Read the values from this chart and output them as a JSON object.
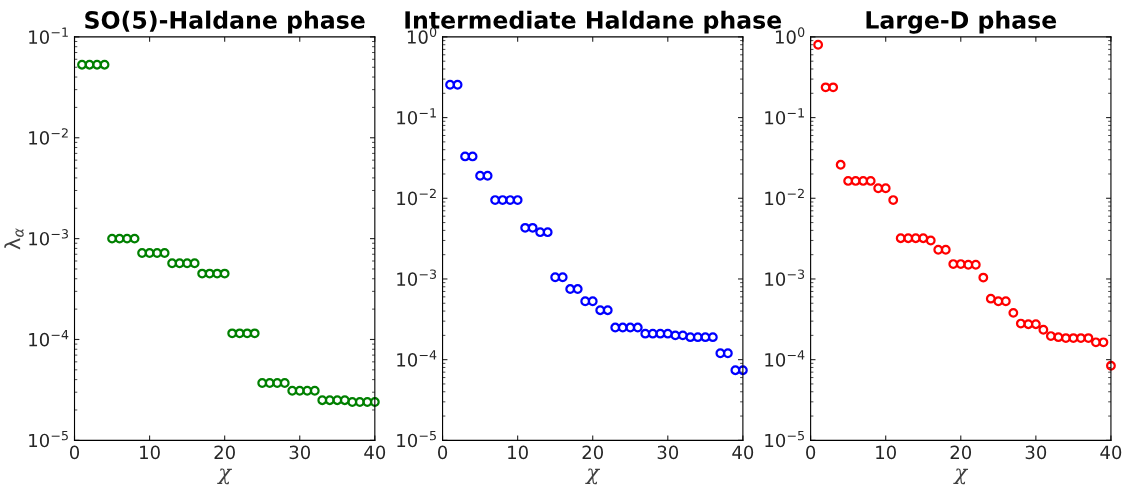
{
  "chart_data": [
    {
      "type": "scatter",
      "title": "SO(5)-Haldane phase",
      "xlabel": "χ",
      "ylabel": "λ$_{α}$",
      "log": "y",
      "marker": "circle",
      "grid": false,
      "x": [
        1,
        2,
        3,
        4,
        5,
        6,
        7,
        8,
        9,
        10,
        11,
        12,
        13,
        14,
        15,
        16,
        17,
        18,
        19,
        20,
        21,
        22,
        23,
        24,
        25,
        26,
        27,
        28,
        29,
        30,
        31,
        32,
        33,
        34,
        35,
        36,
        37,
        38,
        39,
        40
      ],
      "series": [
        {
          "color": "#008000",
          "values": [
            0.053,
            0.053,
            0.053,
            0.053,
            0.001,
            0.001,
            0.001,
            0.001,
            0.00072,
            0.00072,
            0.00072,
            0.00072,
            0.00057,
            0.00057,
            0.00057,
            0.00057,
            0.00045,
            0.00045,
            0.00045,
            0.00045,
            0.000115,
            0.000115,
            0.000115,
            0.000115,
            3.7e-05,
            3.7e-05,
            3.7e-05,
            3.7e-05,
            3.1e-05,
            3.1e-05,
            3.1e-05,
            3.1e-05,
            2.5e-05,
            2.5e-05,
            2.5e-05,
            2.5e-05,
            2.4e-05,
            2.4e-05,
            2.4e-05,
            2.4e-05
          ]
        }
      ],
      "xlim": [
        0,
        40
      ],
      "xticks": [
        0,
        10,
        20,
        30,
        40
      ],
      "ylim": [
        1e-05,
        0.1
      ],
      "yticks": [
        {
          "value": 1e-05,
          "label": "10$^{−5}$"
        },
        {
          "value": 0.0001,
          "label": "10$^{−4}$"
        },
        {
          "value": 0.001,
          "label": "10$^{−3}$"
        },
        {
          "value": 0.01,
          "label": "10$^{−2}$"
        },
        {
          "value": 0.1,
          "label": "10$^{−1}$"
        }
      ]
    },
    {
      "type": "scatter",
      "title": "Intermediate Haldane phase",
      "xlabel": "χ",
      "log": "y",
      "marker": "circle",
      "grid": false,
      "x": [
        1,
        2,
        3,
        4,
        5,
        6,
        7,
        8,
        9,
        10,
        11,
        12,
        13,
        14,
        15,
        16,
        17,
        18,
        19,
        20,
        21,
        22,
        23,
        24,
        25,
        26,
        27,
        28,
        29,
        30,
        31,
        32,
        33,
        34,
        35,
        36,
        37,
        38,
        39,
        40
      ],
      "series": [
        {
          "color": "#0000ff",
          "values": [
            0.255,
            0.255,
            0.033,
            0.033,
            0.019,
            0.019,
            0.0095,
            0.0095,
            0.0095,
            0.0095,
            0.0043,
            0.0043,
            0.0038,
            0.0038,
            0.00105,
            0.00105,
            0.00075,
            0.00075,
            0.00053,
            0.00053,
            0.00041,
            0.00041,
            0.00025,
            0.00025,
            0.00025,
            0.00025,
            0.00021,
            0.00021,
            0.00021,
            0.00021,
            0.0002,
            0.0002,
            0.00019,
            0.00019,
            0.00019,
            0.00019,
            0.00012,
            0.00012,
            7.4e-05,
            7.4e-05
          ]
        }
      ],
      "xlim": [
        0,
        40
      ],
      "xticks": [
        0,
        10,
        20,
        30,
        40
      ],
      "ylim": [
        1e-05,
        1
      ],
      "yticks": [
        {
          "value": 1e-05,
          "label": "10$^{−5}$"
        },
        {
          "value": 0.0001,
          "label": "10$^{−4}$"
        },
        {
          "value": 0.001,
          "label": "10$^{−3}$"
        },
        {
          "value": 0.01,
          "label": "10$^{−2}$"
        },
        {
          "value": 0.1,
          "label": "10$^{−1}$"
        },
        {
          "value": 1,
          "label": "10$^{0}$"
        }
      ]
    },
    {
      "type": "scatter",
      "title": "Large-D phase",
      "xlabel": "χ",
      "log": "y",
      "marker": "circle",
      "grid": false,
      "x": [
        1,
        2,
        3,
        4,
        5,
        6,
        7,
        8,
        9,
        10,
        11,
        12,
        13,
        14,
        15,
        16,
        17,
        18,
        19,
        20,
        21,
        22,
        23,
        24,
        25,
        26,
        27,
        28,
        29,
        30,
        31,
        32,
        33,
        34,
        35,
        36,
        37,
        38,
        39,
        40
      ],
      "series": [
        {
          "color": "#ff0000",
          "values": [
            0.8,
            0.237,
            0.237,
            0.026,
            0.0164,
            0.0164,
            0.0164,
            0.0164,
            0.0133,
            0.0133,
            0.0095,
            0.0032,
            0.0032,
            0.0032,
            0.0032,
            0.003,
            0.0023,
            0.0023,
            0.00153,
            0.00153,
            0.0015,
            0.0015,
            0.00104,
            0.00057,
            0.00053,
            0.00053,
            0.00038,
            0.00028,
            0.000275,
            0.000275,
            0.000235,
            0.000196,
            0.00019,
            0.000185,
            0.000185,
            0.000185,
            0.000185,
            0.000164,
            0.000164,
            8.4e-05
          ]
        }
      ],
      "xlim": [
        0,
        40
      ],
      "xticks": [
        0,
        10,
        20,
        30,
        40
      ],
      "ylim": [
        1e-05,
        1
      ],
      "yticks": [
        {
          "value": 1e-05,
          "label": "10$^{−5}$"
        },
        {
          "value": 0.0001,
          "label": "10$^{−4}$"
        },
        {
          "value": 0.001,
          "label": "10$^{−3}$"
        },
        {
          "value": 0.01,
          "label": "10$^{−2}$"
        },
        {
          "value": 0.1,
          "label": "10$^{−1}$"
        },
        {
          "value": 1,
          "label": "10$^{0}$"
        }
      ]
    }
  ]
}
